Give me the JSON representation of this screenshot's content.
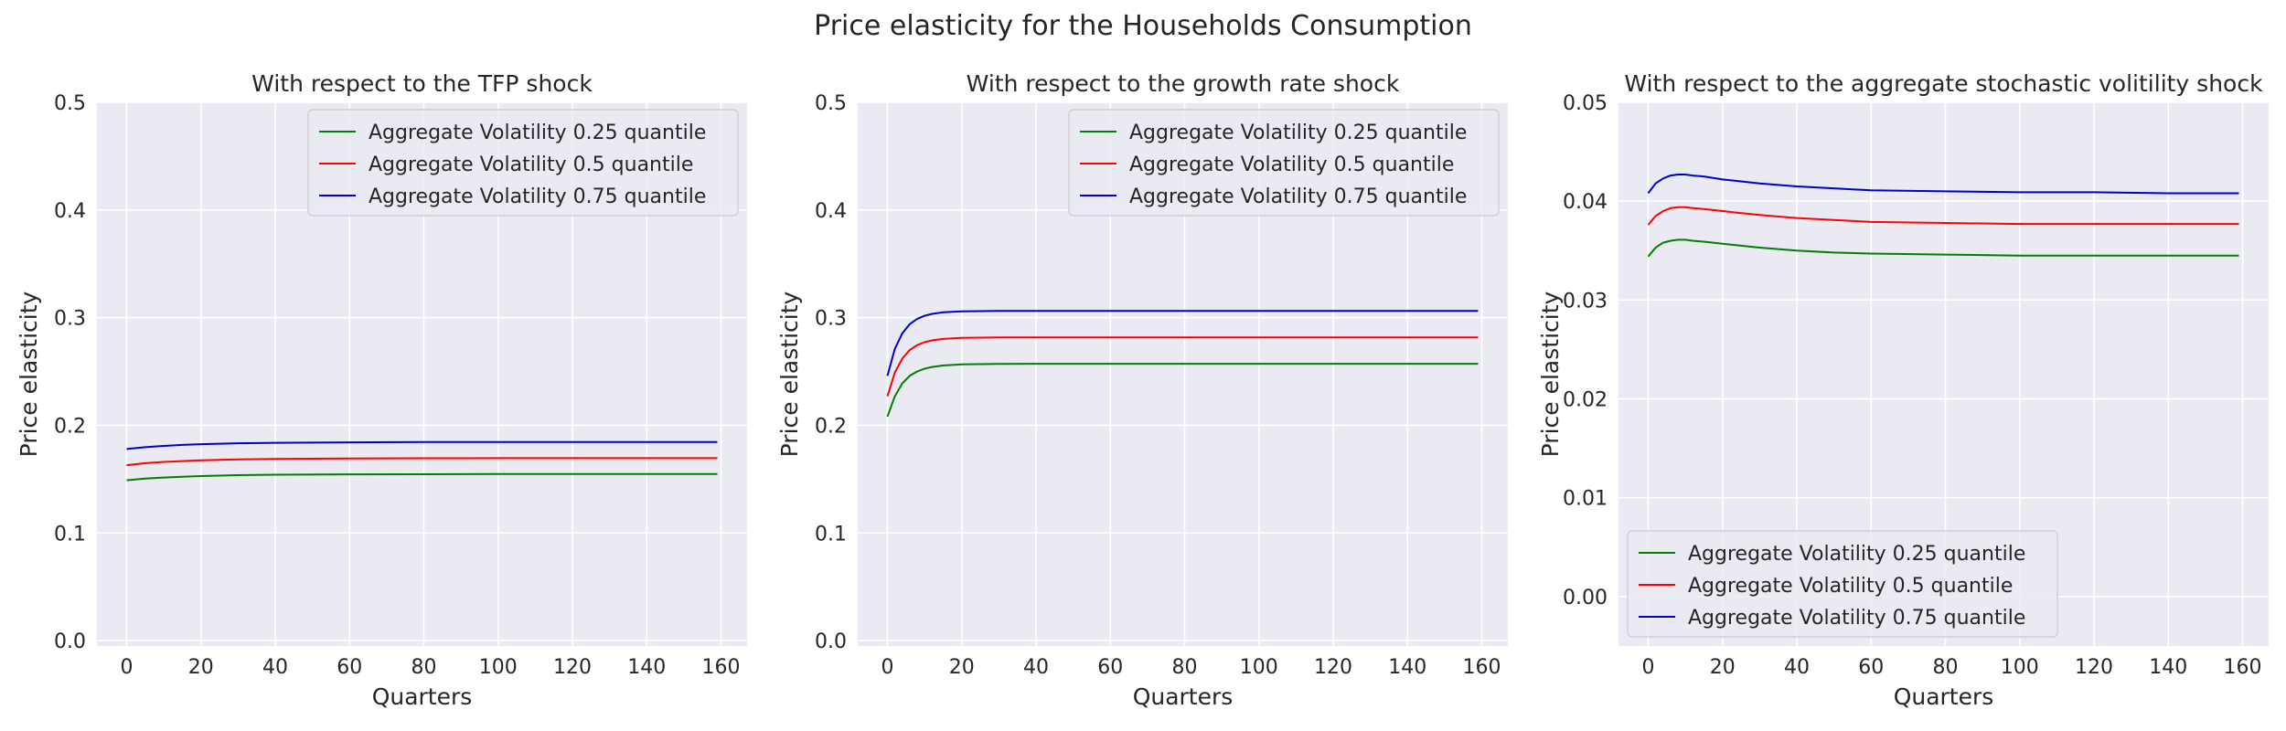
{
  "figure": {
    "title": "Price elasticity for the Households Consumption"
  },
  "colors": {
    "axes_bg": "#eaeaf2",
    "grid": "#ffffff",
    "text": "#262626",
    "series": [
      "#008000",
      "#ff0000",
      "#0000cd"
    ]
  },
  "chart_data": [
    {
      "type": "line",
      "title": "With respect to the TFP shock",
      "xlabel": "Quarters",
      "ylabel": "Price elasticity",
      "xlim": [
        -8,
        167
      ],
      "ylim": [
        -0.005,
        0.5
      ],
      "xticks": [
        0,
        20,
        40,
        60,
        80,
        100,
        120,
        140,
        160
      ],
      "yticks": [
        0.0,
        0.1,
        0.2,
        0.3,
        0.4,
        0.5
      ],
      "ytick_labels": [
        "0.0",
        "0.1",
        "0.2",
        "0.3",
        "0.4",
        "0.5"
      ],
      "grid": true,
      "legend": "upper-right",
      "x": [
        0,
        5,
        10,
        15,
        20,
        30,
        40,
        60,
        80,
        100,
        120,
        140,
        159
      ],
      "series": [
        {
          "name": "Aggregate Volatility 0.25 quantile",
          "values": [
            0.149,
            0.1505,
            0.1515,
            0.1523,
            0.1529,
            0.1537,
            0.1541,
            0.1545,
            0.1546,
            0.1547,
            0.1547,
            0.1547,
            0.1547
          ]
        },
        {
          "name": "Aggregate Volatility 0.5 quantile",
          "values": [
            0.163,
            0.1648,
            0.166,
            0.1668,
            0.1675,
            0.1683,
            0.1688,
            0.1692,
            0.1694,
            0.1695,
            0.1695,
            0.1695,
            0.1695
          ]
        },
        {
          "name": "Aggregate Volatility 0.75 quantile",
          "values": [
            0.178,
            0.1797,
            0.1809,
            0.1818,
            0.1825,
            0.1833,
            0.1838,
            0.1842,
            0.1844,
            0.1845,
            0.1845,
            0.1845,
            0.1845
          ]
        }
      ]
    },
    {
      "type": "line",
      "title": "With respect to the growth rate shock",
      "xlabel": "Quarters",
      "ylabel": "Price elasticity",
      "xlim": [
        -8,
        167
      ],
      "ylim": [
        -0.005,
        0.5
      ],
      "xticks": [
        0,
        20,
        40,
        60,
        80,
        100,
        120,
        140,
        160
      ],
      "yticks": [
        0.0,
        0.1,
        0.2,
        0.3,
        0.4,
        0.5
      ],
      "ytick_labels": [
        "0.0",
        "0.1",
        "0.2",
        "0.3",
        "0.4",
        "0.5"
      ],
      "grid": true,
      "legend": "upper-right",
      "x": [
        0,
        2,
        4,
        6,
        8,
        10,
        12,
        15,
        20,
        30,
        40,
        60,
        80,
        100,
        120,
        140,
        159
      ],
      "series": [
        {
          "name": "Aggregate Volatility 0.25 quantile",
          "values": [
            0.208,
            0.227,
            0.239,
            0.246,
            0.25,
            0.2526,
            0.2542,
            0.2556,
            0.2566,
            0.2571,
            0.2572,
            0.2572,
            0.2572,
            0.2572,
            0.2572,
            0.2572,
            0.2572
          ]
        },
        {
          "name": "Aggregate Volatility 0.5 quantile",
          "values": [
            0.227,
            0.249,
            0.262,
            0.27,
            0.2745,
            0.2772,
            0.2789,
            0.2803,
            0.2812,
            0.2816,
            0.2817,
            0.2817,
            0.2817,
            0.2817,
            0.2817,
            0.2817,
            0.2817
          ]
        },
        {
          "name": "Aggregate Volatility 0.75 quantile",
          "values": [
            0.246,
            0.271,
            0.2855,
            0.294,
            0.2988,
            0.3017,
            0.3035,
            0.305,
            0.3058,
            0.3062,
            0.3063,
            0.3063,
            0.3063,
            0.3063,
            0.3063,
            0.3063,
            0.3063
          ]
        }
      ]
    },
    {
      "type": "line",
      "title": "With respect to the aggregate stochastic volitility shock",
      "xlabel": "Quarters",
      "ylabel": "Price elasticity",
      "xlim": [
        -8,
        167
      ],
      "ylim": [
        -0.005,
        0.05
      ],
      "xticks": [
        0,
        20,
        40,
        60,
        80,
        100,
        120,
        140,
        160
      ],
      "yticks": [
        0.0,
        0.01,
        0.02,
        0.03,
        0.04,
        0.05
      ],
      "ytick_labels": [
        "0.00",
        "0.01",
        "0.02",
        "0.03",
        "0.04",
        "0.05"
      ],
      "grid": true,
      "legend": "lower-left",
      "x": [
        0,
        2,
        4,
        6,
        8,
        10,
        12,
        15,
        20,
        25,
        30,
        40,
        50,
        60,
        80,
        100,
        120,
        140,
        159
      ],
      "series": [
        {
          "name": "Aggregate Volatility 0.25 quantile",
          "values": [
            0.0344,
            0.0353,
            0.0358,
            0.036,
            0.0361,
            0.0361,
            0.036,
            0.0359,
            0.0357,
            0.0355,
            0.0353,
            0.035,
            0.0348,
            0.0347,
            0.0346,
            0.0345,
            0.0345,
            0.0345,
            0.0345
          ]
        },
        {
          "name": "Aggregate Volatility 0.5 quantile",
          "values": [
            0.0376,
            0.0385,
            0.039,
            0.0393,
            0.0394,
            0.0394,
            0.0393,
            0.0392,
            0.039,
            0.0388,
            0.0386,
            0.0383,
            0.0381,
            0.0379,
            0.0378,
            0.0377,
            0.0377,
            0.0377,
            0.0377
          ]
        },
        {
          "name": "Aggregate Volatility 0.75 quantile",
          "values": [
            0.0408,
            0.0418,
            0.0423,
            0.0426,
            0.0427,
            0.0427,
            0.0426,
            0.0425,
            0.0422,
            0.042,
            0.0418,
            0.0415,
            0.0413,
            0.0411,
            0.041,
            0.0409,
            0.0409,
            0.0408,
            0.0408
          ]
        }
      ]
    }
  ]
}
